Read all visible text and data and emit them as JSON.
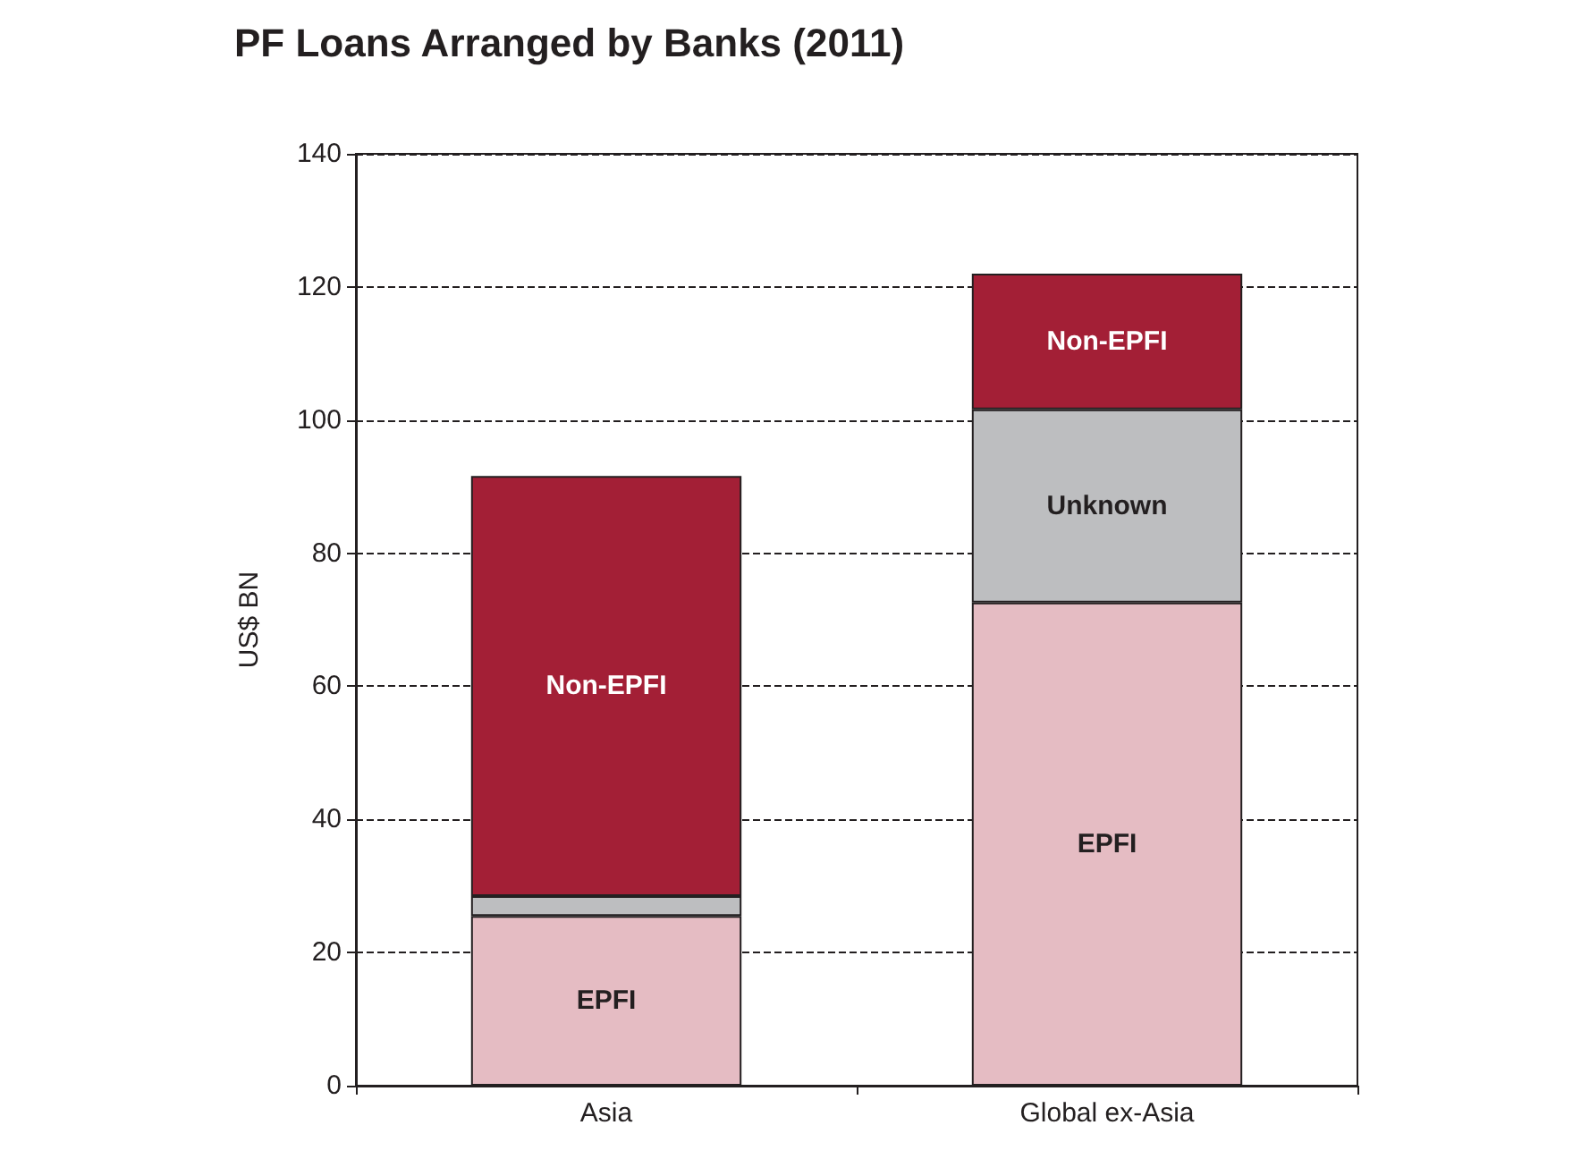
{
  "chart_data": {
    "type": "bar",
    "title": "PF Loans Arranged by Banks (2011)",
    "ylabel": "US$ BN",
    "categories": [
      "Asia",
      "Global ex-Asia"
    ],
    "stacked": true,
    "series": [
      {
        "name": "EPFI",
        "color": "#e5bcc3",
        "values": [
          25.5,
          72.6
        ]
      },
      {
        "name": "Unknown",
        "color": "#bdbec0",
        "values": [
          3,
          29
        ]
      },
      {
        "name": "Non-EPFI",
        "color": "#a31f36",
        "values": [
          63.1,
          20.4
        ]
      }
    ],
    "ylim": [
      0,
      140
    ],
    "yticks": [
      0,
      20,
      40,
      60,
      80,
      100,
      120,
      140
    ],
    "grid": "y",
    "legend": false
  }
}
